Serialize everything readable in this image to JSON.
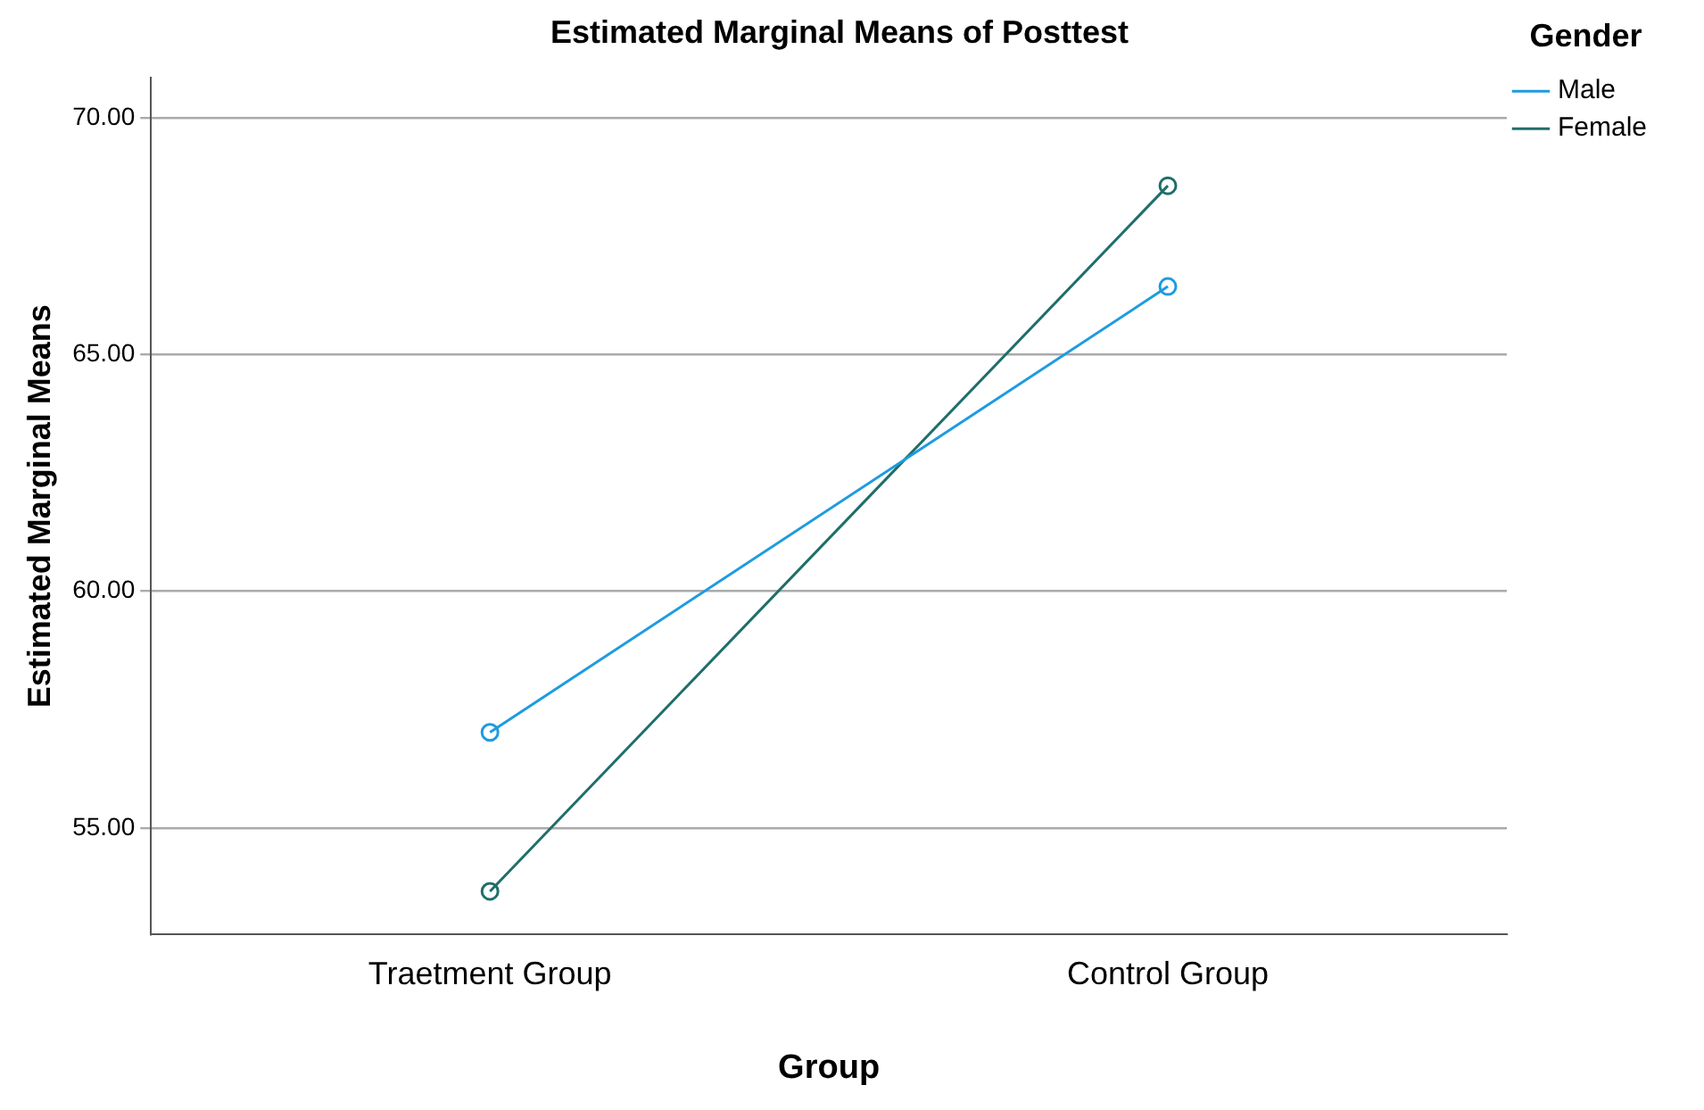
{
  "chart_data": {
    "type": "line",
    "title": "Estimated Marginal Means of Posttest",
    "xlabel": "Group",
    "ylabel": "Estimated Marginal Means",
    "legend_title": "Gender",
    "categories": [
      "Traetment Group",
      "Control Group"
    ],
    "series": [
      {
        "name": "Male",
        "color": "#1e9be0",
        "values": [
          57.02,
          66.44
        ]
      },
      {
        "name": "Female",
        "color": "#1f6e6a",
        "values": [
          53.66,
          68.57
        ]
      }
    ],
    "ylim": [
      52.75,
      70.85
    ],
    "yticks": [
      {
        "value": 55,
        "label": "55.00"
      },
      {
        "value": 60,
        "label": "60.00"
      },
      {
        "value": 65,
        "label": "65.00"
      },
      {
        "value": 70,
        "label": "70.00"
      }
    ],
    "grid": "y",
    "legend": "top right",
    "marker": "circle",
    "line_style": "solid"
  }
}
